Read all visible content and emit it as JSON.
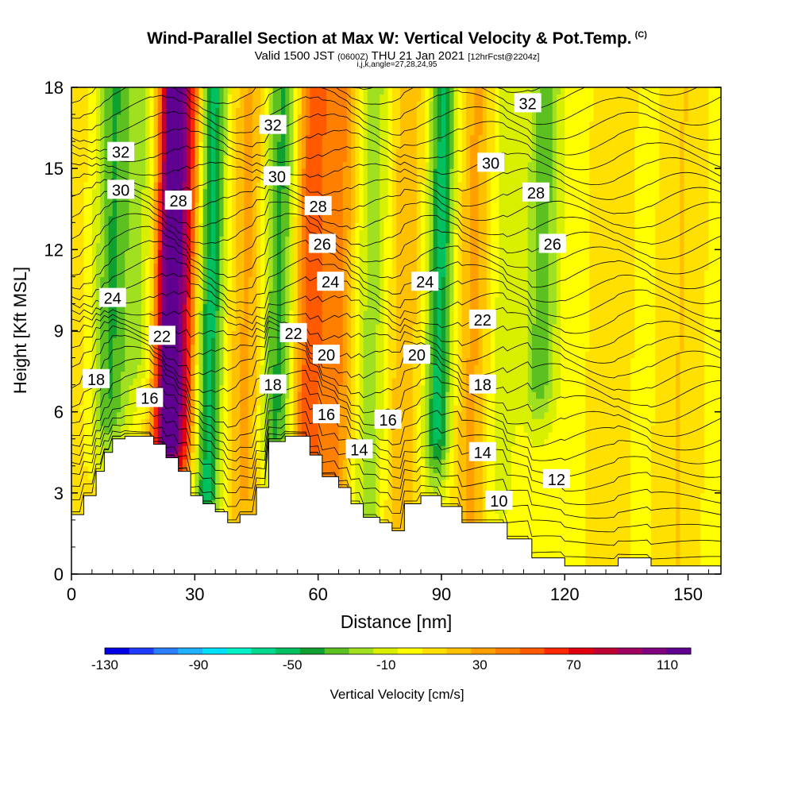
{
  "title": {
    "main": "Wind-Parallel Section at Max W: Vertical Velocity & Pot.Temp.",
    "copyright": "(C)",
    "valid_prefix": "Valid 1500 JST",
    "valid_zulu": "(0600Z)",
    "valid_date": "THU 21 Jan 2021",
    "forecast": "[12hrFcst@2204z]",
    "params": "i,j,k,angle=27,28,24,95"
  },
  "chart_data": {
    "type": "heatmap",
    "xlabel": "Distance [nm]",
    "ylabel": "Height [Kft MSL]",
    "xlim": [
      0,
      158
    ],
    "ylim": [
      0,
      18
    ],
    "x_ticks": [
      0,
      30,
      60,
      90,
      120,
      150
    ],
    "y_ticks": [
      0,
      3,
      6,
      9,
      12,
      15,
      18
    ],
    "colorbar": {
      "label": "Vertical Velocity [cm/s]",
      "ticks": [
        -130,
        -90,
        -50,
        -10,
        30,
        70,
        110
      ],
      "min": -130,
      "max": 120,
      "colors": [
        "#0000e6",
        "#1e3cff",
        "#2b7fff",
        "#1fb0ff",
        "#00e0ff",
        "#00f0c8",
        "#00d98c",
        "#00c060",
        "#10a030",
        "#5cc020",
        "#a0e020",
        "#d8f000",
        "#ffff00",
        "#ffe000",
        "#ffc000",
        "#ffa000",
        "#ff8000",
        "#ff5a00",
        "#ff2800",
        "#e00010",
        "#c00030",
        "#a00060",
        "#800080",
        "#600090"
      ]
    },
    "columns": [
      {
        "x": 2,
        "w": 5,
        "ymin": 3
      },
      {
        "x": 9,
        "w": -40,
        "ymin": 6
      },
      {
        "x": 16,
        "w": -20,
        "ymin": 8
      },
      {
        "x": 23,
        "w": 115,
        "ymin": 5
      },
      {
        "x": 27,
        "w": 60,
        "ymin": 5
      },
      {
        "x": 33,
        "w": -55,
        "ymin": 3
      },
      {
        "x": 42,
        "w": 25,
        "ymin": 3
      },
      {
        "x": 50,
        "w": -45,
        "ymin": 5
      },
      {
        "x": 57,
        "w": 50,
        "ymin": 4
      },
      {
        "x": 64,
        "w": 35,
        "ymin": 3
      },
      {
        "x": 72,
        "w": -25,
        "ymin": 2
      },
      {
        "x": 80,
        "w": 20,
        "ymin": 2
      },
      {
        "x": 89,
        "w": -55,
        "ymin": 5
      },
      {
        "x": 97,
        "w": 25,
        "ymin": 2
      },
      {
        "x": 104,
        "w": -15,
        "ymin": 3
      },
      {
        "x": 114,
        "w": -35,
        "ymin": 7
      },
      {
        "x": 130,
        "w": 8,
        "ymin": 0
      },
      {
        "x": 147,
        "w": 12,
        "ymin": 0
      }
    ],
    "terrain": [
      [
        0,
        2.2
      ],
      [
        3,
        2.2
      ],
      [
        3,
        2.9
      ],
      [
        6,
        2.9
      ],
      [
        6,
        3.8
      ],
      [
        8,
        3.8
      ],
      [
        8,
        4.5
      ],
      [
        10,
        4.5
      ],
      [
        10,
        5.0
      ],
      [
        13,
        5.0
      ],
      [
        13,
        5.1
      ],
      [
        20,
        5.1
      ],
      [
        20,
        4.8
      ],
      [
        23,
        4.8
      ],
      [
        23,
        4.3
      ],
      [
        26,
        4.3
      ],
      [
        26,
        3.8
      ],
      [
        29,
        3.8
      ],
      [
        29,
        2.9
      ],
      [
        32,
        2.9
      ],
      [
        32,
        2.6
      ],
      [
        35,
        2.6
      ],
      [
        35,
        2.3
      ],
      [
        38,
        2.3
      ],
      [
        38,
        1.9
      ],
      [
        41,
        1.9
      ],
      [
        41,
        2.2
      ],
      [
        45,
        2.2
      ],
      [
        45,
        3.2
      ],
      [
        48,
        3.2
      ],
      [
        48,
        4.9
      ],
      [
        52,
        4.9
      ],
      [
        52,
        5.1
      ],
      [
        58,
        5.1
      ],
      [
        58,
        4.4
      ],
      [
        61,
        4.4
      ],
      [
        61,
        3.6
      ],
      [
        65,
        3.6
      ],
      [
        65,
        3.2
      ],
      [
        68,
        3.2
      ],
      [
        68,
        2.6
      ],
      [
        71,
        2.6
      ],
      [
        71,
        2.1
      ],
      [
        75,
        2.1
      ],
      [
        75,
        1.9
      ],
      [
        78,
        1.9
      ],
      [
        78,
        1.6
      ],
      [
        81,
        1.6
      ],
      [
        81,
        2.6
      ],
      [
        85,
        2.6
      ],
      [
        85,
        2.9
      ],
      [
        90,
        2.9
      ],
      [
        90,
        2.5
      ],
      [
        95,
        2.5
      ],
      [
        95,
        1.9
      ],
      [
        106,
        1.9
      ],
      [
        106,
        1.3
      ],
      [
        112,
        1.3
      ],
      [
        112,
        0.6
      ],
      [
        120,
        0.6
      ],
      [
        120,
        0.3
      ],
      [
        133,
        0.3
      ],
      [
        133,
        0.6
      ],
      [
        141,
        0.6
      ],
      [
        141,
        0.3
      ],
      [
        158,
        0.3
      ]
    ],
    "isentropes": {
      "label_values": [
        10,
        12,
        14,
        16,
        18,
        20,
        22,
        24,
        26,
        28,
        30,
        32
      ],
      "labels": [
        {
          "text": "32",
          "x": 12,
          "y": 15.6
        },
        {
          "text": "30",
          "x": 12,
          "y": 14.2
        },
        {
          "text": "24",
          "x": 10,
          "y": 10.2
        },
        {
          "text": "18",
          "x": 6,
          "y": 7.2
        },
        {
          "text": "16",
          "x": 19,
          "y": 6.5
        },
        {
          "text": "22",
          "x": 22,
          "y": 8.8
        },
        {
          "text": "28",
          "x": 26,
          "y": 13.8
        },
        {
          "text": "32",
          "x": 49,
          "y": 16.6
        },
        {
          "text": "30",
          "x": 50,
          "y": 14.7
        },
        {
          "text": "28",
          "x": 60,
          "y": 13.6
        },
        {
          "text": "26",
          "x": 61,
          "y": 12.2
        },
        {
          "text": "24",
          "x": 63,
          "y": 10.8
        },
        {
          "text": "22",
          "x": 54,
          "y": 8.9
        },
        {
          "text": "20",
          "x": 62,
          "y": 8.1
        },
        {
          "text": "18",
          "x": 49,
          "y": 7.0
        },
        {
          "text": "16",
          "x": 62,
          "y": 5.9
        },
        {
          "text": "14",
          "x": 70,
          "y": 4.6
        },
        {
          "text": "16",
          "x": 77,
          "y": 5.7
        },
        {
          "text": "20",
          "x": 84,
          "y": 8.1
        },
        {
          "text": "24",
          "x": 86,
          "y": 10.8
        },
        {
          "text": "22",
          "x": 100,
          "y": 9.4
        },
        {
          "text": "18",
          "x": 100,
          "y": 7.0
        },
        {
          "text": "14",
          "x": 100,
          "y": 4.5
        },
        {
          "text": "10",
          "x": 104,
          "y": 2.7
        },
        {
          "text": "30",
          "x": 102,
          "y": 15.2
        },
        {
          "text": "28",
          "x": 113,
          "y": 14.1
        },
        {
          "text": "26",
          "x": 117,
          "y": 12.2
        },
        {
          "text": "32",
          "x": 111,
          "y": 17.4
        },
        {
          "text": "12",
          "x": 118,
          "y": 3.5
        }
      ]
    }
  }
}
